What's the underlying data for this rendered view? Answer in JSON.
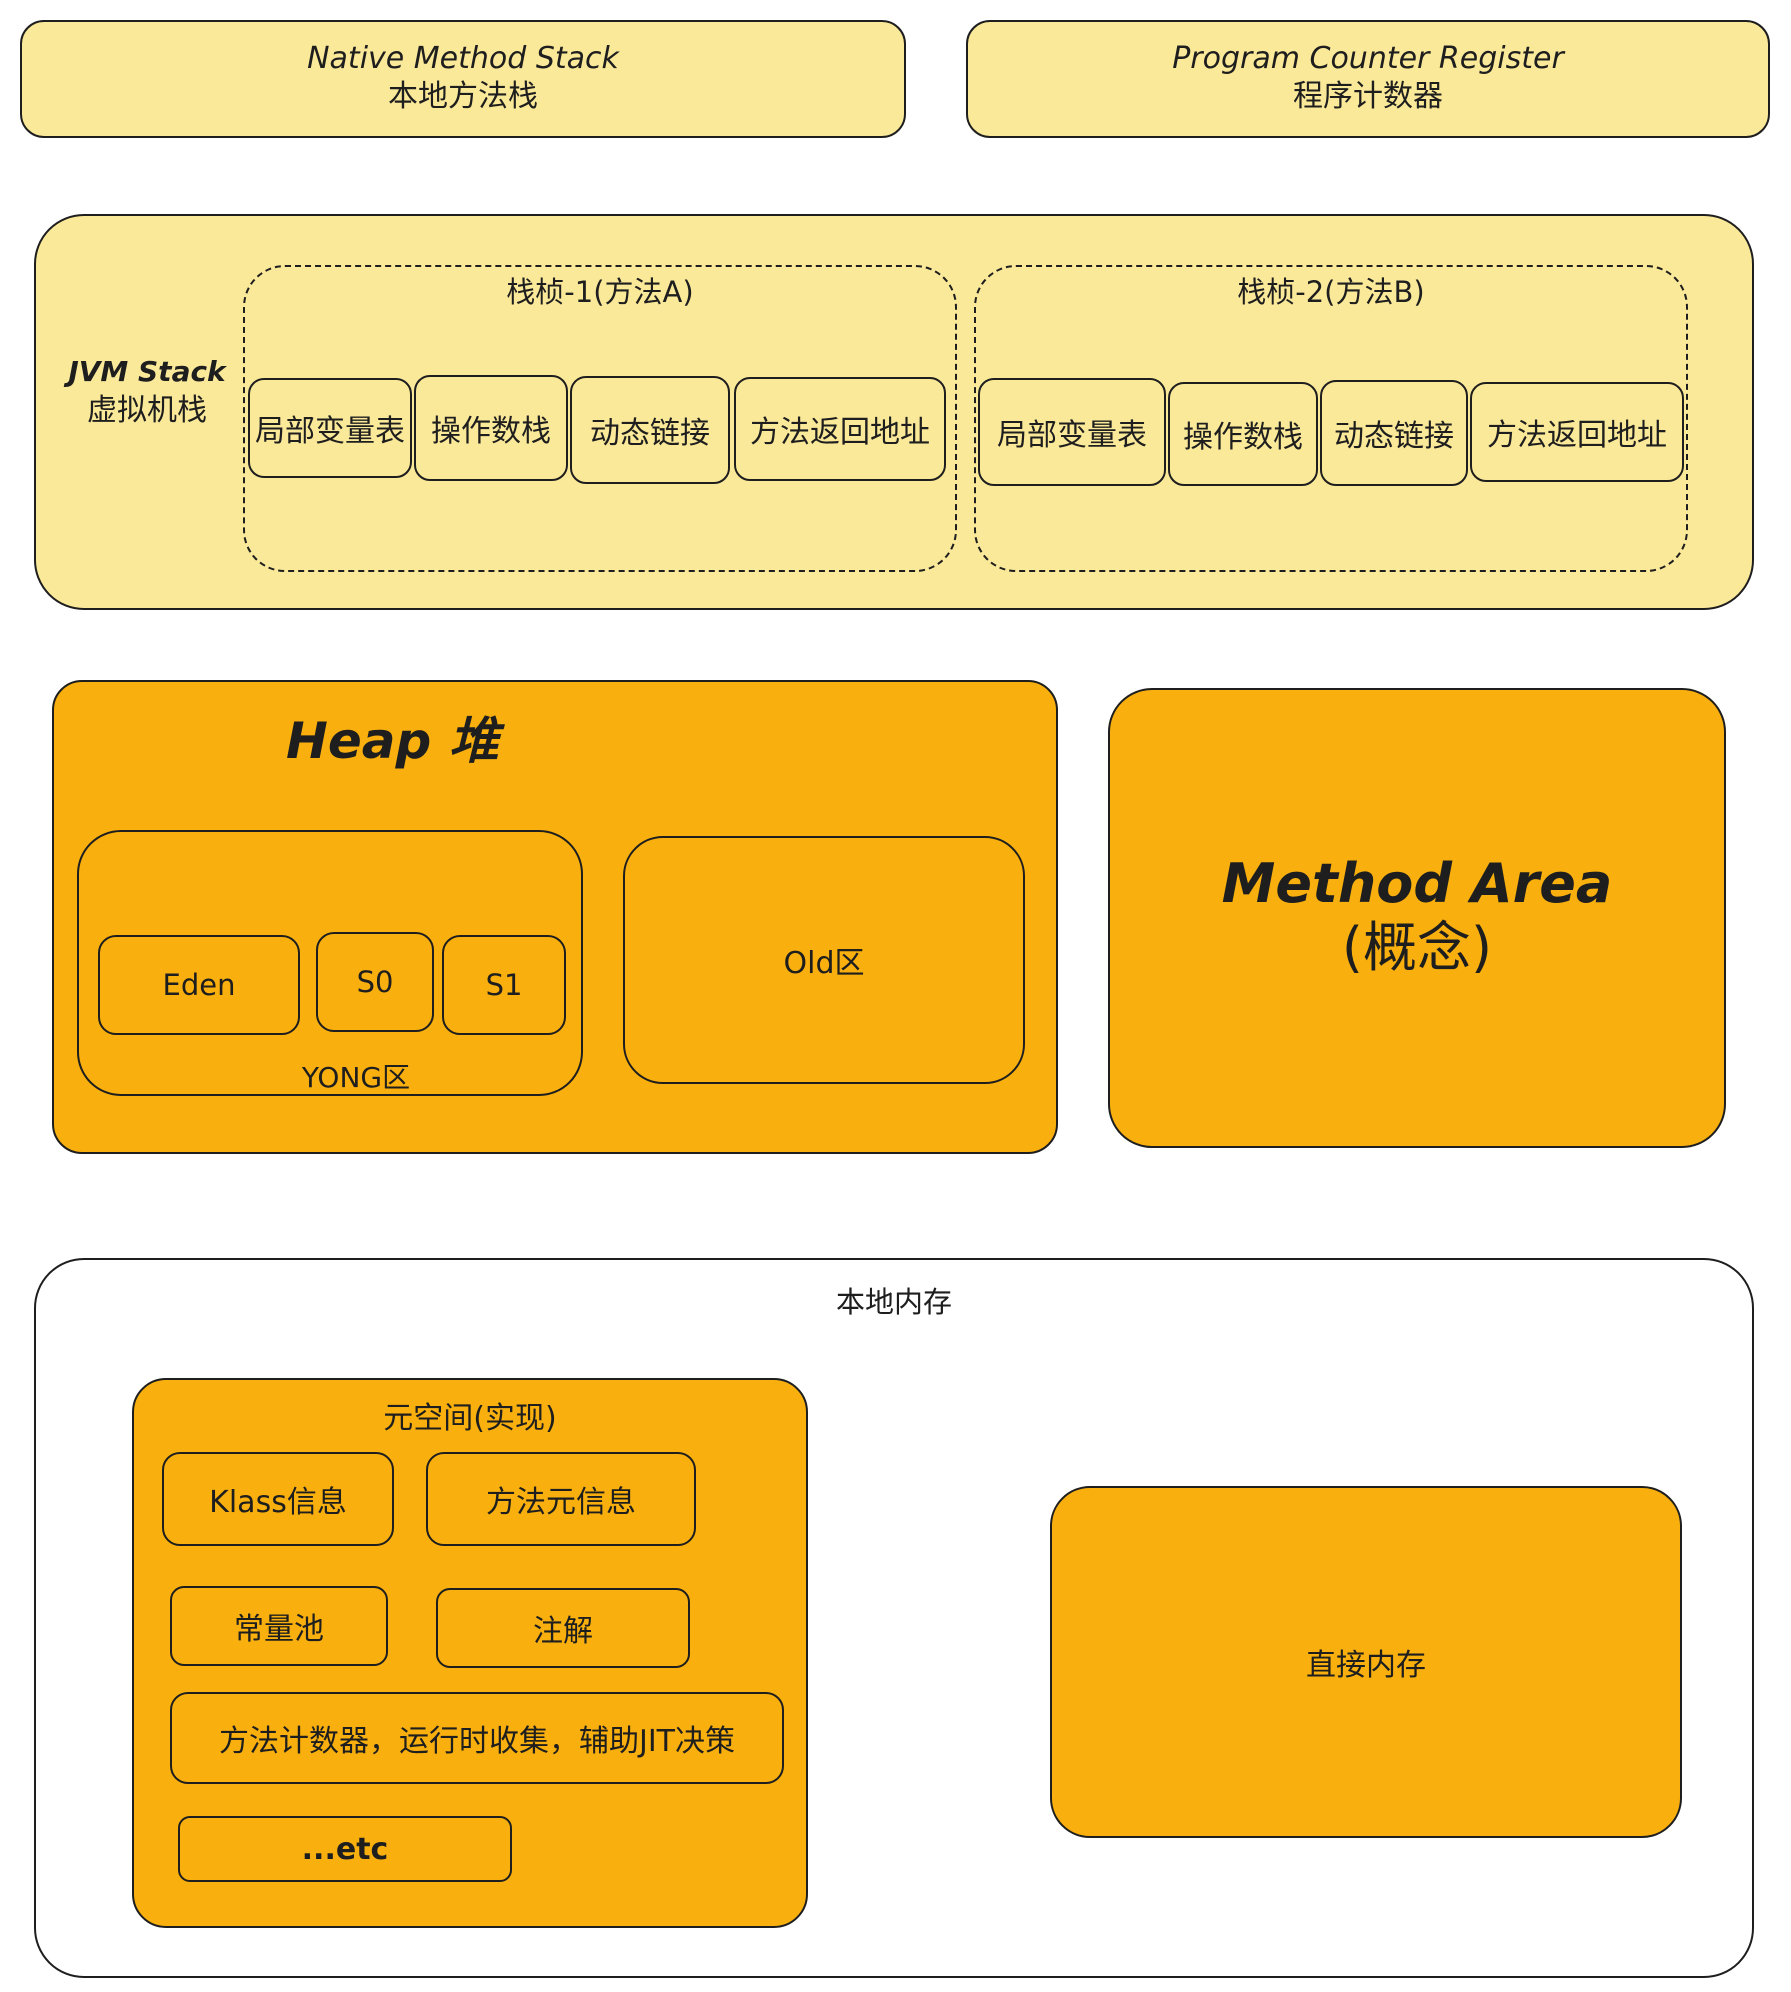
{
  "native_stack": {
    "title_en": "Native Method Stack",
    "title_zh": "本地方法栈"
  },
  "pc_register": {
    "title_en": "Program Counter Register",
    "title_zh": "程序计数器"
  },
  "jvm_stack": {
    "title_en": "JVM Stack",
    "title_zh": "虚拟机栈",
    "frames": [
      {
        "title": "栈桢-1(方法A)",
        "cells": [
          "局部变量表",
          "操作数栈",
          "动态链接",
          "方法返回地址"
        ]
      },
      {
        "title": "栈桢-2(方法B)",
        "cells": [
          "局部变量表",
          "操作数栈",
          "动态链接",
          "方法返回地址"
        ]
      }
    ]
  },
  "heap": {
    "title": "Heap 堆",
    "young": {
      "label": "YONG区",
      "cells": [
        "Eden",
        "S0",
        "S1"
      ]
    },
    "old": {
      "label": "Old区"
    }
  },
  "method_area": {
    "title_en": "Method Area",
    "title_zh": "(概念)"
  },
  "native_memory": {
    "title": "本地内存",
    "metaspace": {
      "title": "元空间(实现)",
      "items": [
        "Klass信息",
        "方法元信息",
        "常量池",
        "注解",
        "方法计数器，运行时收集，辅助JIT决策",
        "...etc"
      ]
    },
    "direct_memory": "直接内存"
  },
  "colors": {
    "light_yellow": "#fbe99a",
    "orange": "#f9b00e",
    "stroke": "#1e1e1e"
  }
}
